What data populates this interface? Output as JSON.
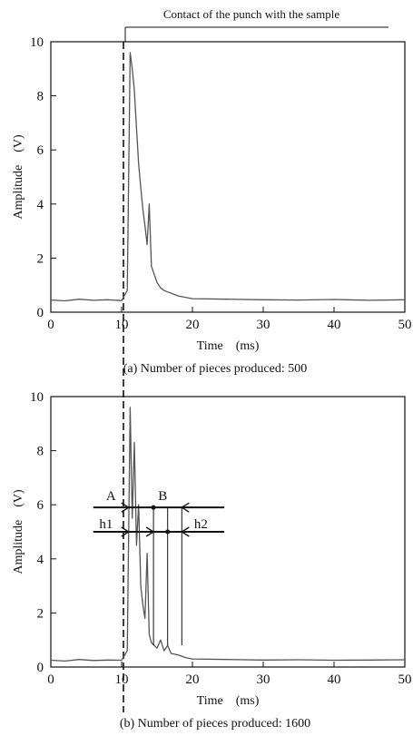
{
  "annotation": {
    "contact_label": "Contact of the punch with the sample"
  },
  "chart_data": [
    {
      "type": "line",
      "caption": "(a) Number of pieces produced: 500",
      "xlabel": "Time    (ms)",
      "ylabel": "Amplitude    (V)",
      "xlim": [
        0,
        50
      ],
      "ylim": [
        0,
        10
      ],
      "xticks": [
        0,
        10,
        20,
        30,
        40,
        50
      ],
      "yticks": [
        0,
        2,
        4,
        6,
        8,
        10
      ],
      "grid": false,
      "series": [
        {
          "x": [
            0,
            2,
            4,
            6,
            8,
            10,
            10.8,
            11.2,
            11.5,
            11.8,
            12.1,
            12.4,
            12.7,
            13.0,
            13.3,
            13.6,
            13.9,
            14.2,
            14.6,
            15.0,
            15.5,
            16,
            17,
            18,
            19,
            20,
            25,
            30,
            35,
            40,
            45,
            50
          ],
          "y": [
            0.45,
            0.42,
            0.48,
            0.44,
            0.46,
            0.43,
            0.8,
            9.6,
            9.0,
            8.2,
            6.8,
            5.5,
            4.6,
            3.8,
            3.2,
            2.5,
            4.0,
            1.7,
            1.4,
            1.1,
            0.9,
            0.8,
            0.7,
            0.6,
            0.55,
            0.5,
            0.48,
            0.46,
            0.45,
            0.47,
            0.44,
            0.46
          ],
          "color": "#555555"
        }
      ]
    },
    {
      "type": "line",
      "caption": "(b) Number of pieces produced: 1600",
      "xlabel": "Time    (ms)",
      "ylabel": "Amplitude    (V)",
      "xlim": [
        0,
        50
      ],
      "ylim": [
        0,
        10
      ],
      "xticks": [
        0,
        10,
        20,
        30,
        40,
        50
      ],
      "yticks": [
        0,
        2,
        4,
        6,
        8,
        10
      ],
      "grid": false,
      "annotations": {
        "A": {
          "label": "A",
          "y": 5.9,
          "x_from": 6,
          "x_to": 11
        },
        "B": {
          "label": "B",
          "y": 5.9,
          "x_from": 11,
          "x_to": 24.5,
          "marker_x": 14.5
        },
        "h1": {
          "label": "h1",
          "y": 5.0,
          "x_from": 6,
          "x_to": 11
        },
        "h2": {
          "label": "h2",
          "y": 5.0,
          "x_from": 11,
          "x_to": 24.5,
          "marker_x": 16.5
        },
        "vertical_marks_x": [
          14.5,
          16.5,
          18.5
        ]
      },
      "series": [
        {
          "x": [
            0,
            2,
            4,
            6,
            8,
            10,
            10.8,
            11.2,
            11.5,
            11.8,
            12.1,
            12.4,
            12.7,
            13.0,
            13.3,
            13.6,
            13.9,
            14.2,
            14.6,
            15.0,
            15.5,
            16,
            16.5,
            17,
            18,
            19,
            20,
            25,
            30,
            35,
            40,
            45,
            50
          ],
          "y": [
            0.25,
            0.22,
            0.28,
            0.24,
            0.26,
            0.25,
            0.6,
            9.6,
            5.5,
            8.3,
            4.5,
            6.0,
            3.0,
            2.3,
            1.8,
            4.2,
            1.2,
            0.9,
            0.8,
            0.7,
            1.0,
            0.6,
            0.8,
            0.5,
            0.45,
            0.35,
            0.3,
            0.28,
            0.26,
            0.27,
            0.25,
            0.26,
            0.27
          ],
          "color": "#555555"
        }
      ]
    }
  ]
}
